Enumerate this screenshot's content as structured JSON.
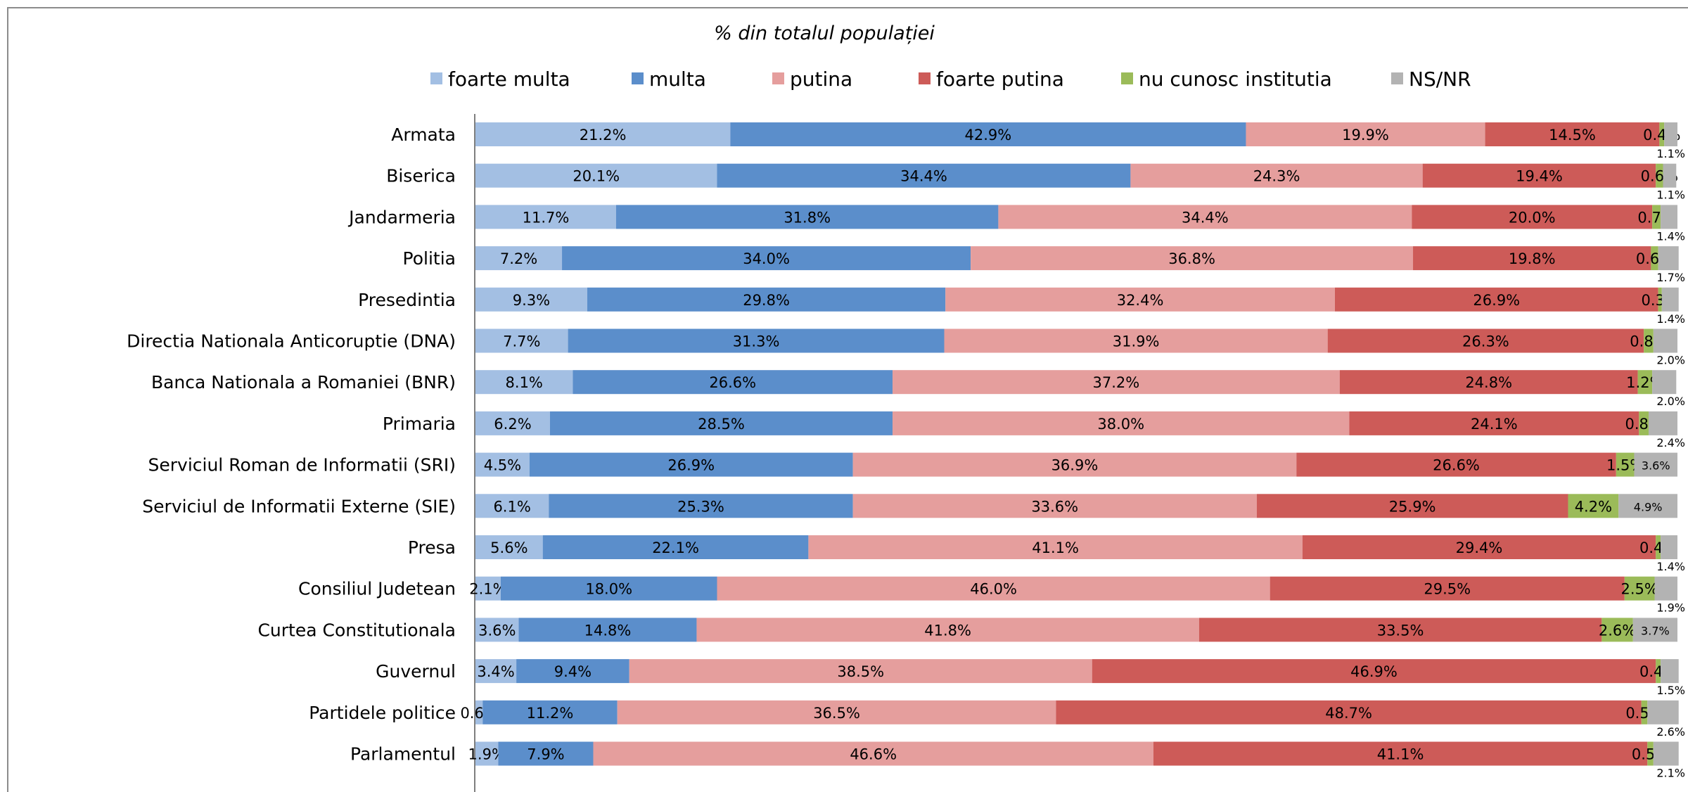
{
  "chart_data": {
    "type": "bar",
    "orientation": "horizontal",
    "stacked": true,
    "title": "% din totalul populației",
    "legend_position": "top",
    "xlim": [
      0,
      100
    ],
    "grid": false,
    "categories": [
      "Armata",
      "Biserica",
      "Jandarmeria",
      "Politia",
      "Presedintia",
      "Directia Nationala Anticoruptie (DNA)",
      "Banca Nationala a Romaniei (BNR)",
      "Primaria",
      "Serviciul Roman de Informatii (SRI)",
      "Serviciul de Informatii Externe (SIE)",
      "Presa",
      "Consiliul Judetean",
      "Curtea Constitutionala",
      "Guvernul",
      "Partidele politice",
      "Parlamentul"
    ],
    "series": [
      {
        "name": "foarte multa",
        "color": "#a3bfe3",
        "values": [
          21.2,
          20.1,
          11.7,
          7.2,
          9.3,
          7.7,
          8.1,
          6.2,
          4.5,
          6.1,
          5.6,
          2.1,
          3.6,
          3.4,
          0.6,
          1.9
        ]
      },
      {
        "name": "multa",
        "color": "#5b8ecb",
        "values": [
          42.9,
          34.4,
          31.8,
          34.0,
          29.8,
          31.3,
          26.6,
          28.5,
          26.9,
          25.3,
          22.1,
          18.0,
          14.8,
          9.4,
          11.2,
          7.9
        ]
      },
      {
        "name": "putina",
        "color": "#e59e9d",
        "values": [
          19.9,
          24.3,
          34.4,
          36.8,
          32.4,
          31.9,
          37.2,
          38.0,
          36.9,
          33.6,
          41.1,
          46.0,
          41.8,
          38.5,
          36.5,
          46.6
        ]
      },
      {
        "name": "foarte putina",
        "color": "#cd5b58",
        "values": [
          14.5,
          19.4,
          20.0,
          19.8,
          26.9,
          26.3,
          24.8,
          24.1,
          26.6,
          25.9,
          29.4,
          29.5,
          33.5,
          46.9,
          48.7,
          41.1
        ]
      },
      {
        "name": "nu cunosc institutia",
        "color": "#9bbb59",
        "values": [
          0.4,
          0.6,
          0.7,
          0.6,
          0.3,
          0.8,
          1.2,
          0.8,
          1.5,
          4.2,
          0.4,
          2.5,
          2.6,
          0.4,
          0.5,
          0.5
        ]
      },
      {
        "name": "NS/NR",
        "color": "#b3b3b3",
        "values": [
          1.1,
          1.1,
          1.4,
          1.7,
          1.4,
          2.0,
          2.0,
          2.4,
          3.6,
          4.9,
          1.4,
          1.9,
          3.7,
          1.5,
          2.6,
          2.1
        ]
      }
    ]
  }
}
